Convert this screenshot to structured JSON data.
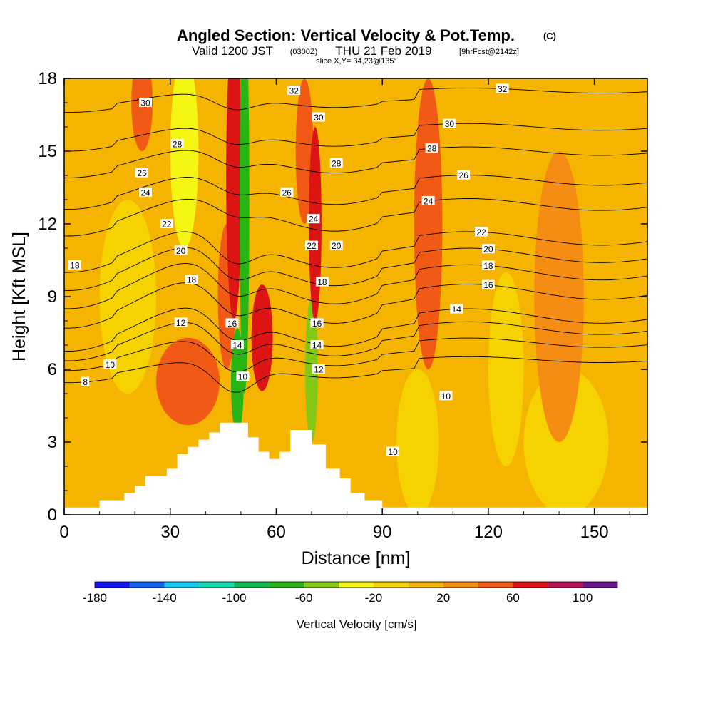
{
  "header": {
    "title": "Angled Section: Vertical Velocity & Pot.Temp.",
    "title_unit": "(C)",
    "valid_prefix": "Valid 1200 JST",
    "valid_zulu": "(0300Z)",
    "valid_date": "THU 21 Feb 2019",
    "forecast_tag": "[9hrFcst@2142z]",
    "slice": "slice X,Y= 34,23@135°"
  },
  "chart_data": {
    "type": "heatmap",
    "xlabel": "Distance [nm]",
    "ylabel": "Height [Kft MSL]",
    "xlim": [
      0,
      165
    ],
    "ylim": [
      0,
      18
    ],
    "x_ticks": [
      "0",
      "30",
      "60",
      "90",
      "120",
      "150"
    ],
    "y_ticks": [
      "0",
      "3",
      "6",
      "9",
      "12",
      "15",
      "18"
    ],
    "colorbar": {
      "label": "Vertical Velocity [cm/s]",
      "tick_labels": [
        "-180",
        "-140",
        "-100",
        "-60",
        "-20",
        "20",
        "60",
        "100"
      ],
      "levels": [
        -180,
        -160,
        -140,
        -120,
        -100,
        -80,
        -60,
        -40,
        -20,
        0,
        20,
        40,
        60,
        80,
        100,
        120
      ],
      "colors": [
        "#1414f0",
        "#1464f0",
        "#14c8f0",
        "#14d8b0",
        "#14b850",
        "#28b414",
        "#82c814",
        "#f5f514",
        "#f5d200",
        "#f5b400",
        "#f58c14",
        "#f05a14",
        "#dc1414",
        "#b4145a",
        "#6e148c"
      ]
    },
    "background_color": "#f5b400",
    "velocity_features": [
      {
        "x": 48,
        "z": 14,
        "w": 2.2,
        "h": 6,
        "value": 65
      },
      {
        "x": 46,
        "z": 9,
        "w": 2.5,
        "h": 3,
        "value": 50
      },
      {
        "x": 51,
        "z": 13,
        "w": 1.4,
        "h": 8,
        "value": -70
      },
      {
        "x": 49,
        "z": 5.5,
        "w": 1.8,
        "h": 2.2,
        "value": -75
      },
      {
        "x": 56,
        "z": 7.3,
        "w": 3,
        "h": 2.2,
        "value": 65
      },
      {
        "x": 70,
        "z": 6,
        "w": 1.8,
        "h": 3,
        "value": -60
      },
      {
        "x": 71,
        "z": 12,
        "w": 1.8,
        "h": 4,
        "value": 60
      },
      {
        "x": 68,
        "z": 15,
        "w": 2.5,
        "h": 3,
        "value": 40
      },
      {
        "x": 22,
        "z": 17,
        "w": 3,
        "h": 2,
        "value": 45
      },
      {
        "x": 34,
        "z": 15,
        "w": 4,
        "h": 4,
        "value": -35
      },
      {
        "x": 18,
        "z": 9,
        "w": 8,
        "h": 4,
        "value": -20
      },
      {
        "x": 35,
        "z": 5.5,
        "w": 9,
        "h": 1.8,
        "value": 40
      },
      {
        "x": 103,
        "z": 12,
        "w": 4,
        "h": 6,
        "value": 40
      },
      {
        "x": 100,
        "z": 3,
        "w": 6,
        "h": 3,
        "value": -20
      },
      {
        "x": 142,
        "z": 3,
        "w": 12,
        "h": 3,
        "value": -20
      },
      {
        "x": 140,
        "z": 9,
        "w": 7,
        "h": 6,
        "value": 20
      },
      {
        "x": 125,
        "z": 6,
        "w": 5,
        "h": 4,
        "value": -15
      }
    ],
    "terrain": [
      [
        0,
        0.3
      ],
      [
        10,
        0.3
      ],
      [
        10,
        0.6
      ],
      [
        17,
        0.6
      ],
      [
        17,
        0.9
      ],
      [
        20,
        0.9
      ],
      [
        20,
        1.2
      ],
      [
        23,
        1.2
      ],
      [
        23,
        1.6
      ],
      [
        29,
        1.6
      ],
      [
        29,
        1.9
      ],
      [
        32,
        1.9
      ],
      [
        32,
        2.5
      ],
      [
        35,
        2.5
      ],
      [
        35,
        2.8
      ],
      [
        38,
        2.8
      ],
      [
        38,
        3.1
      ],
      [
        41,
        3.1
      ],
      [
        41,
        3.4
      ],
      [
        44,
        3.4
      ],
      [
        44,
        3.8
      ],
      [
        52,
        3.8
      ],
      [
        52,
        3.2
      ],
      [
        55,
        3.2
      ],
      [
        55,
        2.6
      ],
      [
        58,
        2.6
      ],
      [
        58,
        2.3
      ],
      [
        61,
        2.3
      ],
      [
        61,
        2.6
      ],
      [
        64,
        2.6
      ],
      [
        64,
        3.5
      ],
      [
        70,
        3.5
      ],
      [
        70,
        2.9
      ],
      [
        74,
        2.9
      ],
      [
        74,
        1.9
      ],
      [
        78,
        1.9
      ],
      [
        78,
        1.5
      ],
      [
        81,
        1.5
      ],
      [
        81,
        0.9
      ],
      [
        85,
        0.9
      ],
      [
        85,
        0.6
      ],
      [
        90,
        0.6
      ],
      [
        90,
        0.3
      ],
      [
        165,
        0.3
      ]
    ],
    "theta_contours": [
      {
        "value": 8,
        "z0": 6.0,
        "amp": 0.35,
        "label": "8",
        "lx": 6
      },
      {
        "value": 10,
        "z0": 6.7,
        "amp": 0.55,
        "label": "10",
        "lx": 13
      },
      {
        "value": 12,
        "z0": 7.3,
        "amp": 0.75,
        "label": "12",
        "lx": 33
      },
      {
        "value": 14,
        "z0": 7.8,
        "amp": 0.85,
        "label": "14",
        "lx": 111
      },
      {
        "value": 16,
        "z0": 8.8,
        "amp": 0.9,
        "label": "16",
        "lx": 120
      },
      {
        "value": 18,
        "z0": 9.6,
        "amp": 0.9,
        "label": "18",
        "lx": 120
      },
      {
        "value": 20,
        "z0": 10.3,
        "amp": 0.85,
        "label": "20",
        "lx": 120
      },
      {
        "value": 22,
        "z0": 11.0,
        "amp": 0.8,
        "label": "22",
        "lx": 118
      },
      {
        "value": 24,
        "z0": 12.4,
        "amp": 0.7,
        "label": "24",
        "lx": 103
      },
      {
        "value": 26,
        "z0": 13.4,
        "amp": 0.6,
        "label": "26",
        "lx": 113
      },
      {
        "value": 28,
        "z0": 14.6,
        "amp": 0.5,
        "label": "28",
        "lx": 104
      },
      {
        "value": 30,
        "z0": 15.6,
        "amp": 0.4,
        "label": "30",
        "lx": 109
      },
      {
        "value": 32,
        "z0": 17.1,
        "amp": 0.3,
        "label": "32",
        "lx": 124
      }
    ],
    "extra_labels": [
      {
        "text": "18",
        "x": 3,
        "z": 10.3
      },
      {
        "text": "30",
        "x": 23,
        "z": 17.0
      },
      {
        "text": "28",
        "x": 32,
        "z": 15.3
      },
      {
        "text": "26",
        "x": 22,
        "z": 14.1
      },
      {
        "text": "24",
        "x": 23,
        "z": 13.3
      },
      {
        "text": "22",
        "x": 29,
        "z": 12.0
      },
      {
        "text": "20",
        "x": 33,
        "z": 10.9
      },
      {
        "text": "18",
        "x": 36,
        "z": 9.7
      },
      {
        "text": "16",
        "x": 47.5,
        "z": 7.9
      },
      {
        "text": "14",
        "x": 49,
        "z": 7.0
      },
      {
        "text": "10",
        "x": 50.5,
        "z": 5.7
      },
      {
        "text": "32",
        "x": 65,
        "z": 17.5
      },
      {
        "text": "30",
        "x": 72,
        "z": 16.4
      },
      {
        "text": "28",
        "x": 77,
        "z": 14.5
      },
      {
        "text": "26",
        "x": 63,
        "z": 13.3
      },
      {
        "text": "24",
        "x": 70.5,
        "z": 12.2
      },
      {
        "text": "22",
        "x": 70,
        "z": 11.1
      },
      {
        "text": "20",
        "x": 77,
        "z": 11.1
      },
      {
        "text": "18",
        "x": 73,
        "z": 9.6
      },
      {
        "text": "16",
        "x": 71.5,
        "z": 7.9
      },
      {
        "text": "14",
        "x": 71.5,
        "z": 7.0
      },
      {
        "text": "12",
        "x": 72,
        "z": 6.0
      },
      {
        "text": "10",
        "x": 108,
        "z": 4.9
      },
      {
        "text": "10",
        "x": 93,
        "z": 2.6
      }
    ]
  }
}
